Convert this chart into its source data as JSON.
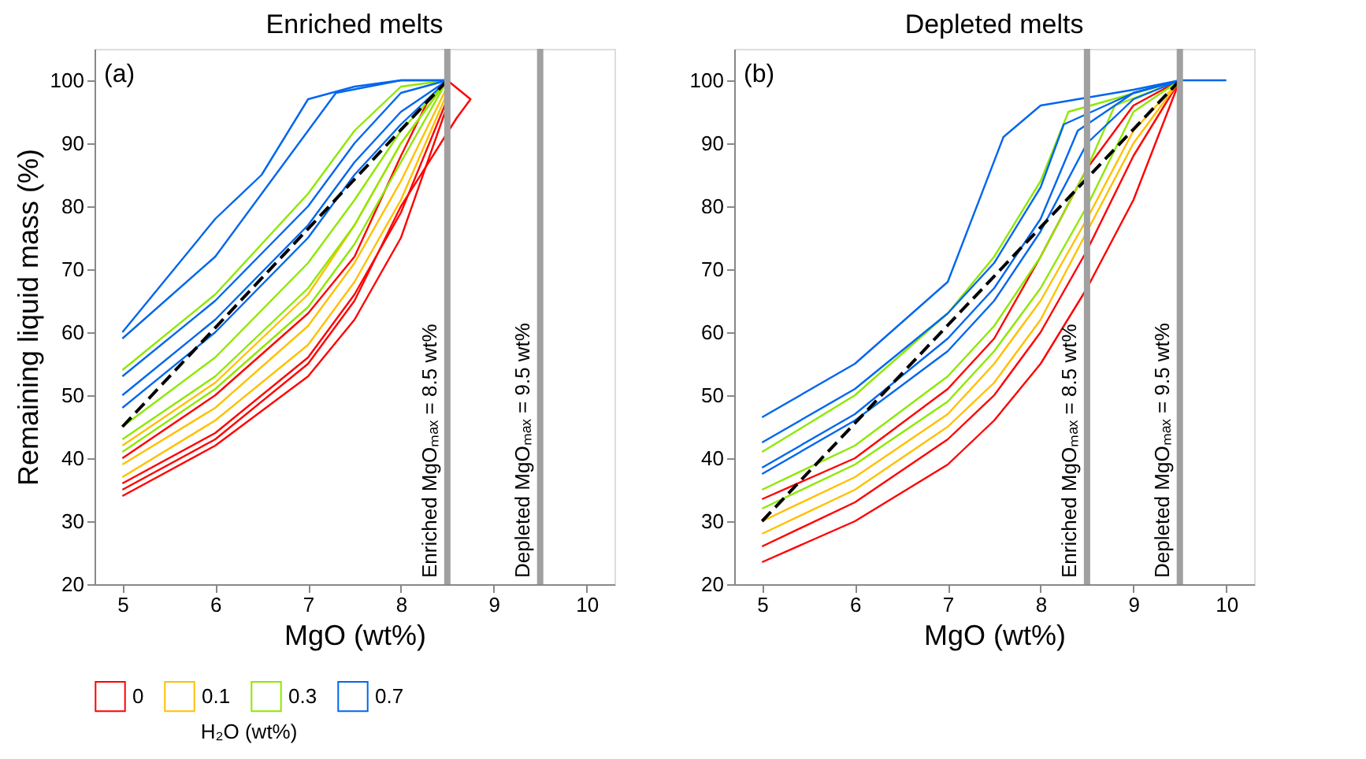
{
  "chart_data": [
    {
      "type": "line",
      "title": "Enriched melts",
      "xlabel": "MgO (wt%)",
      "ylabel": "Remaining liquid mass (%)",
      "legend_title": "H₂O (wt%)",
      "legend": "bottom",
      "annotations": [
        "(a)"
      ],
      "xlim": [
        4.7,
        10.3
      ],
      "ylim": [
        20,
        105
      ],
      "xticks": [
        5,
        6,
        7,
        8,
        9,
        10
      ],
      "yticks": [
        20,
        30,
        40,
        50,
        60,
        70,
        80,
        90,
        100
      ],
      "grid": false,
      "ref_lines": [
        {
          "axis": "x",
          "value": 8.5,
          "label": "Enriched MgOₘₐₓ = 8.5 wt%",
          "color": "#a0a0a0"
        },
        {
          "axis": "x",
          "value": 9.5,
          "label": "Depleted MgOₘₐₓ = 9.5 wt%",
          "color": "#a0a0a0"
        }
      ],
      "series": [
        {
          "name": "0",
          "color": "#ff0000",
          "x": [
            5,
            6,
            7,
            7.5,
            8,
            8.3,
            8.5
          ],
          "values": [
            40,
            50,
            63,
            72,
            88,
            97,
            100
          ]
        },
        {
          "color": "#ff0000",
          "x": [
            5,
            6,
            7,
            7.5,
            8,
            8.5
          ],
          "values": [
            36,
            44,
            56,
            66,
            79,
            97
          ]
        },
        {
          "color": "#ff0000",
          "x": [
            5,
            6,
            7,
            7.5,
            8,
            8.6,
            8.75,
            8.5
          ],
          "values": [
            35,
            43,
            55,
            65,
            80,
            94,
            97,
            100
          ]
        },
        {
          "color": "#ff0000",
          "x": [
            5,
            6,
            7,
            7.5,
            8,
            8.5
          ],
          "values": [
            34,
            42,
            53,
            62,
            75,
            96
          ]
        },
        {
          "name": "0.1",
          "color": "#ffc000",
          "x": [
            5,
            6,
            7,
            7.5,
            8,
            8.5
          ],
          "values": [
            42,
            52,
            66,
            77,
            90,
            100
          ]
        },
        {
          "color": "#ffc000",
          "x": [
            5,
            6,
            7,
            7.5,
            8,
            8.5
          ],
          "values": [
            39,
            48,
            61,
            71,
            84,
            99
          ]
        },
        {
          "color": "#ffc000",
          "x": [
            5,
            6,
            7,
            7.5,
            8,
            8.5
          ],
          "values": [
            37,
            46,
            58,
            68,
            81,
            98
          ]
        },
        {
          "name": "0.3",
          "color": "#8ee800",
          "x": [
            5,
            6,
            7,
            7.5,
            8,
            8.5
          ],
          "values": [
            54,
            66,
            82,
            92,
            99,
            100
          ]
        },
        {
          "color": "#8ee800",
          "x": [
            5,
            6,
            7,
            7.5,
            8,
            8.5
          ],
          "values": [
            45,
            56,
            71,
            81,
            92,
            100
          ]
        },
        {
          "color": "#8ee800",
          "x": [
            5,
            6,
            7,
            7.5,
            8,
            8.5
          ],
          "values": [
            43,
            53,
            67,
            77,
            90,
            100
          ]
        },
        {
          "color": "#8ee800",
          "x": [
            5,
            6,
            7,
            7.5,
            8,
            8.5
          ],
          "values": [
            41,
            51,
            64,
            74,
            87,
            100
          ]
        },
        {
          "name": "0.7",
          "color": "#0066ee",
          "x": [
            5,
            6,
            6.5,
            7,
            7.5,
            8,
            8.5
          ],
          "values": [
            60,
            78,
            85,
            97,
            99,
            100,
            100
          ]
        },
        {
          "color": "#0066ee",
          "x": [
            5,
            6,
            6.5,
            7,
            7.3,
            8,
            8.5
          ],
          "values": [
            59,
            72,
            82,
            92,
            98,
            100,
            100
          ]
        },
        {
          "color": "#0066ee",
          "x": [
            5,
            6,
            7,
            7.5,
            8,
            8.5
          ],
          "values": [
            53,
            65,
            80,
            90,
            98,
            100
          ]
        },
        {
          "color": "#0066ee",
          "x": [
            5,
            6,
            7,
            7.5,
            8,
            8.5
          ],
          "values": [
            50,
            62,
            77,
            87,
            95,
            100
          ]
        },
        {
          "color": "#0066ee",
          "x": [
            5,
            6,
            7,
            7.5,
            8,
            8.5
          ],
          "values": [
            48,
            60,
            75,
            85,
            93,
            100
          ]
        },
        {
          "color": "#000000",
          "line_style": "dashed",
          "x": [
            5,
            8.5
          ],
          "values": [
            45,
            100
          ]
        }
      ]
    },
    {
      "type": "line",
      "title": "Depleted melts",
      "xlabel": "MgO (wt%)",
      "annotations": [
        "(b)"
      ],
      "xlim": [
        4.7,
        10.3
      ],
      "ylim": [
        20,
        105
      ],
      "xticks": [
        5,
        6,
        7,
        8,
        9,
        10
      ],
      "yticks": [
        20,
        30,
        40,
        50,
        60,
        70,
        80,
        90,
        100
      ],
      "grid": false,
      "ref_lines": [
        {
          "axis": "x",
          "value": 8.5,
          "label": "Enriched MgOₘₐₓ = 8.5 wt%",
          "color": "#a0a0a0"
        },
        {
          "axis": "x",
          "value": 9.5,
          "label": "Depleted MgOₘₐₓ = 9.5 wt%",
          "color": "#a0a0a0"
        }
      ],
      "series": [
        {
          "color": "#ff0000",
          "x": [
            5,
            6,
            7,
            7.5,
            8,
            8.5,
            9,
            9.5
          ],
          "values": [
            33.5,
            40,
            51,
            59,
            72,
            86,
            96,
            100
          ]
        },
        {
          "color": "#ff0000",
          "x": [
            5,
            6,
            7,
            7.5,
            8,
            8.5,
            9,
            9.5
          ],
          "values": [
            26,
            33,
            43,
            50,
            60,
            73,
            88,
            100
          ]
        },
        {
          "color": "#ff0000",
          "x": [
            5,
            6,
            7,
            7.5,
            8,
            8.5,
            9,
            9.5
          ],
          "values": [
            23.5,
            30,
            39,
            46,
            55,
            67,
            81,
            100
          ]
        },
        {
          "color": "#ffc000",
          "x": [
            5,
            6,
            7,
            7.5,
            8,
            8.5,
            9,
            9.5
          ],
          "values": [
            30,
            37,
            47,
            55,
            65,
            78,
            92,
            100
          ]
        },
        {
          "color": "#ffc000",
          "x": [
            5,
            6,
            7,
            7.5,
            8,
            8.5,
            9,
            9.5
          ],
          "values": [
            28,
            35,
            45,
            52,
            62,
            76,
            90,
            100
          ]
        },
        {
          "color": "#8ee800",
          "x": [
            5,
            6,
            7,
            7.5,
            8,
            8.3,
            9.5
          ],
          "values": [
            41,
            50,
            63,
            72,
            84,
            95,
            100
          ]
        },
        {
          "color": "#8ee800",
          "x": [
            5,
            6,
            7,
            7.5,
            8,
            8.5,
            8.8,
            9.5
          ],
          "values": [
            35,
            42,
            53,
            61,
            72,
            86,
            96,
            100
          ]
        },
        {
          "color": "#8ee800",
          "x": [
            5,
            6,
            7,
            7.5,
            8,
            8.5,
            9,
            9.5
          ],
          "values": [
            32,
            39,
            49,
            57,
            67,
            80,
            95,
            100
          ]
        },
        {
          "color": "#0066ee",
          "x": [
            5,
            6,
            7,
            7.6,
            8,
            9,
            9.5,
            10
          ],
          "values": [
            46.5,
            55,
            68,
            91,
            96,
            98.5,
            100,
            100
          ]
        },
        {
          "color": "#0066ee",
          "x": [
            5,
            6,
            7,
            7.5,
            8,
            8.25,
            9,
            9.5
          ],
          "values": [
            42.5,
            51,
            63,
            71,
            83,
            93,
            98,
            100
          ]
        },
        {
          "color": "#0066ee",
          "x": [
            5,
            6,
            7,
            7.5,
            8,
            8.4,
            9,
            9.5
          ],
          "values": [
            38.5,
            47,
            59,
            67,
            78,
            92,
            98,
            100
          ]
        },
        {
          "color": "#0066ee",
          "x": [
            5,
            6,
            7,
            7.5,
            8,
            8.5,
            9,
            9.5
          ],
          "values": [
            37.5,
            46,
            57,
            65,
            76,
            90,
            97,
            100
          ]
        },
        {
          "color": "#000000",
          "line_style": "dashed",
          "x": [
            5,
            9.5
          ],
          "values": [
            30,
            100
          ]
        }
      ]
    }
  ]
}
